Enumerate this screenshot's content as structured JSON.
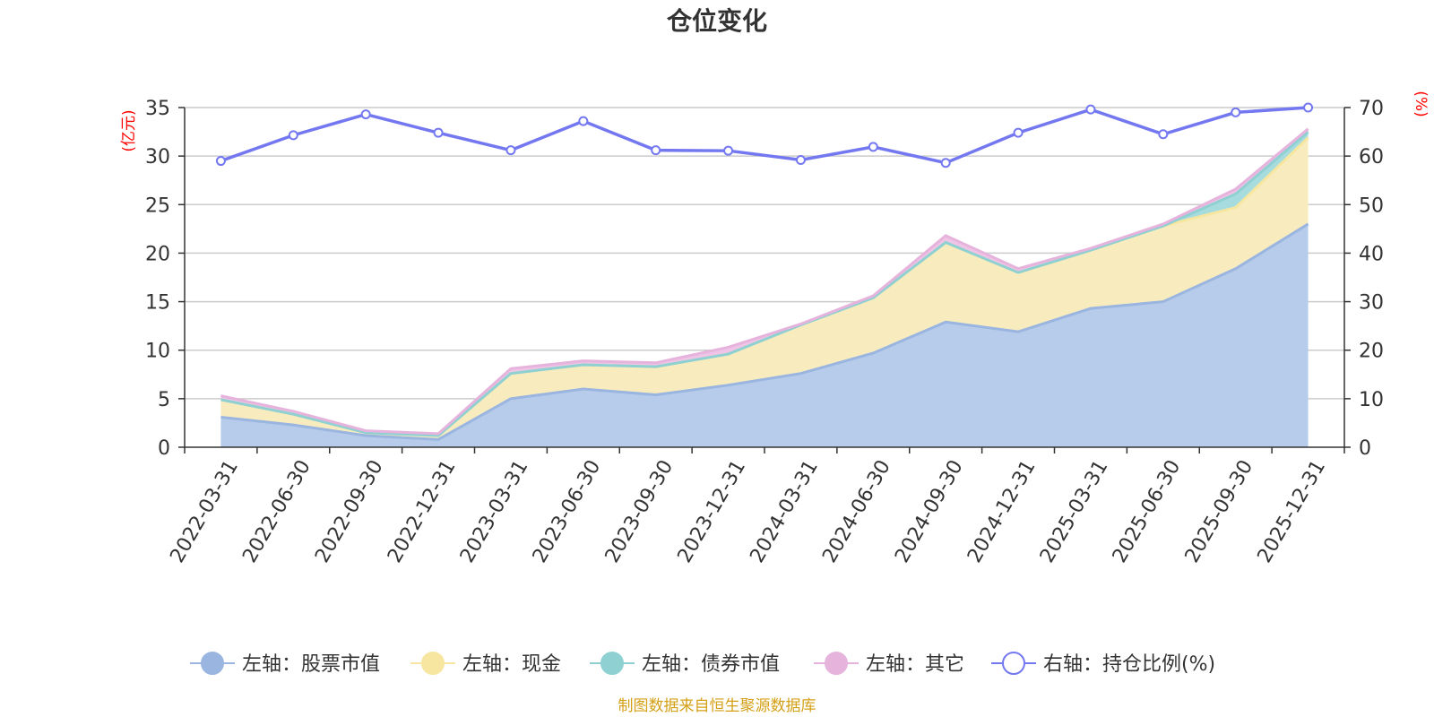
{
  "chart_data": {
    "type": "area",
    "title": "仓位变化",
    "left_axis_unit": "(亿元)",
    "right_axis_unit": "(%)",
    "categories": [
      "2022-03-31",
      "2022-06-30",
      "2022-09-30",
      "2022-12-31",
      "2023-03-31",
      "2023-06-30",
      "2023-09-30",
      "2023-12-31",
      "2024-03-31",
      "2024-06-30",
      "2024-09-30",
      "2024-12-31",
      "2025-03-31",
      "2025-06-30",
      "2025-09-30",
      "2025-12-31"
    ],
    "left_ylim": [
      0,
      35
    ],
    "left_ticks": [
      "0",
      "5",
      "10",
      "15",
      "20",
      "25",
      "30",
      "35"
    ],
    "right_ylim": [
      0,
      70
    ],
    "right_ticks": [
      "0",
      "10",
      "20",
      "30",
      "40",
      "50",
      "60",
      "70"
    ],
    "stacked_series": [
      {
        "name": "左轴：股票市值",
        "color": "#9ab5e0",
        "fill": "#b7cbea",
        "values": [
          3.1,
          2.3,
          1.2,
          0.8,
          5.0,
          6.0,
          5.4,
          6.4,
          7.6,
          9.7,
          12.9,
          11.9,
          14.3,
          15.0,
          18.4,
          23.0
        ]
      },
      {
        "name": "左轴：现金",
        "color": "#f6e6a0",
        "fill": "#f8ecbf",
        "values": [
          1.8,
          1.1,
          0.3,
          0.4,
          2.6,
          2.5,
          2.9,
          3.2,
          5.0,
          5.7,
          8.2,
          6.1,
          6.0,
          7.8,
          6.3,
          8.9
        ]
      },
      {
        "name": "左轴：债券市值",
        "color": "#8fd0d3",
        "fill": "#a7dcde",
        "values": [
          0,
          0,
          0,
          0,
          0,
          0,
          0,
          0,
          0,
          0,
          0,
          0,
          0,
          0,
          1.4,
          0.6
        ]
      },
      {
        "name": "左轴：其它",
        "color": "#e6b3dc",
        "fill": "#efc4e6",
        "values": [
          0.4,
          0.3,
          0.2,
          0.2,
          0.5,
          0.4,
          0.4,
          0.7,
          0.1,
          0.2,
          0.7,
          0.4,
          0.2,
          0.2,
          0.5,
          0.3
        ]
      }
    ],
    "line_series": {
      "name": "右轴：持仓比例(%)",
      "color": "#7478f0",
      "values": [
        59.0,
        64.3,
        68.6,
        64.8,
        61.2,
        67.2,
        61.2,
        61.1,
        59.2,
        61.9,
        58.6,
        64.8,
        69.6,
        64.5,
        69.0,
        70.0
      ]
    },
    "legend": [
      "左轴：股票市值",
      "左轴：现金",
      "左轴：债券市值",
      "左轴：其它",
      "右轴：持仓比例(%)"
    ],
    "legend_position": "bottom-center",
    "source": "制图数据来自恒生聚源数据库"
  }
}
